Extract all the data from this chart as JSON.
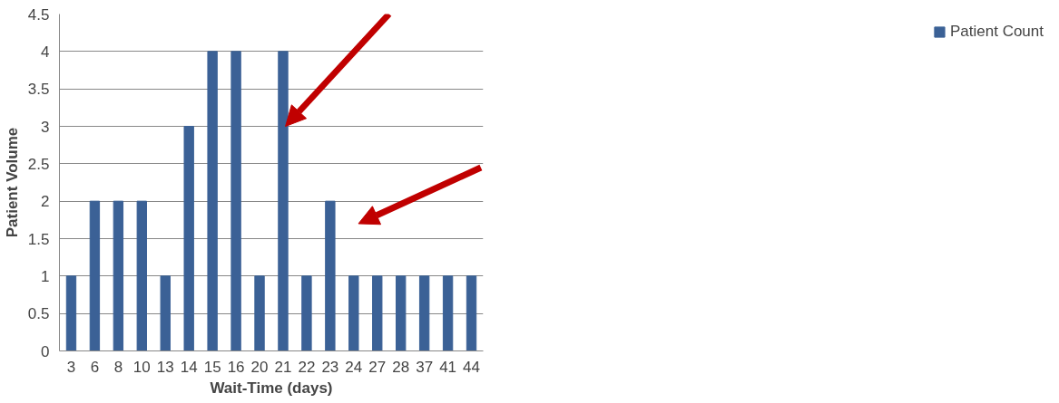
{
  "chart_data": {
    "type": "bar",
    "xlabel": "Wait-Time (days)",
    "ylabel": "Patient Volume",
    "categories": [
      "3",
      "6",
      "8",
      "10",
      "13",
      "14",
      "15",
      "16",
      "20",
      "21",
      "22",
      "23",
      "24",
      "27",
      "28",
      "37",
      "41",
      "44"
    ],
    "series": [
      {
        "name": "Patient Count",
        "color": "#3b6196",
        "values": [
          1,
          2,
          2,
          2,
          1,
          3,
          4,
          4,
          1,
          4,
          1,
          2,
          1,
          1,
          1,
          1,
          1,
          1
        ]
      }
    ],
    "ylim": [
      0,
      4.5
    ],
    "yticks": [
      0,
      0.5,
      1,
      1.5,
      2,
      2.5,
      3,
      3.5,
      4,
      4.5
    ],
    "grid": "y",
    "legend": "right"
  }
}
